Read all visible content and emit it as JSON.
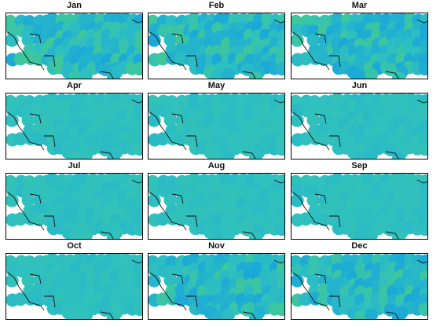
{
  "figure": {
    "colors": {
      "base": "#2fc0c0",
      "blue": "#1aa8d8",
      "green": "#3ec79a",
      "frame": "#000000",
      "border": "#111111"
    },
    "panels": [
      {
        "title": "Jan",
        "variant": "mixed"
      },
      {
        "title": "Feb",
        "variant": "mixed"
      },
      {
        "title": "Mar",
        "variant": "mixed"
      },
      {
        "title": "Apr",
        "variant": "uniform"
      },
      {
        "title": "May",
        "variant": "uniform"
      },
      {
        "title": "Jun",
        "variant": "uniform"
      },
      {
        "title": "Jul",
        "variant": "uniform"
      },
      {
        "title": "Aug",
        "variant": "uniform"
      },
      {
        "title": "Sep",
        "variant": "uniform"
      },
      {
        "title": "Oct",
        "variant": "uniform"
      },
      {
        "title": "Nov",
        "variant": "mixed"
      },
      {
        "title": "Dec",
        "variant": "mixed"
      }
    ]
  }
}
